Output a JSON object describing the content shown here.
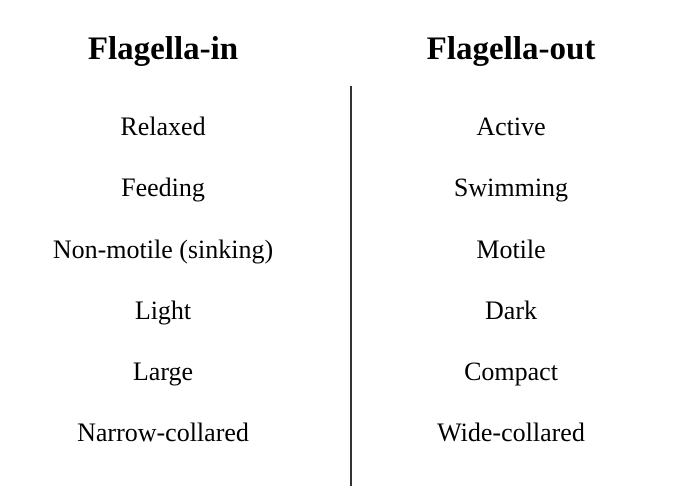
{
  "left_column": {
    "heading": "Flagella-in",
    "items": [
      "Relaxed",
      "Feeding",
      "Non-motile (sinking)",
      "Light",
      "Large",
      "Narrow-collared"
    ]
  },
  "right_column": {
    "heading": "Flagella-out",
    "items": [
      "Active",
      "Swimming",
      "Motile",
      "Dark",
      "Compact",
      "Wide-collared"
    ]
  }
}
